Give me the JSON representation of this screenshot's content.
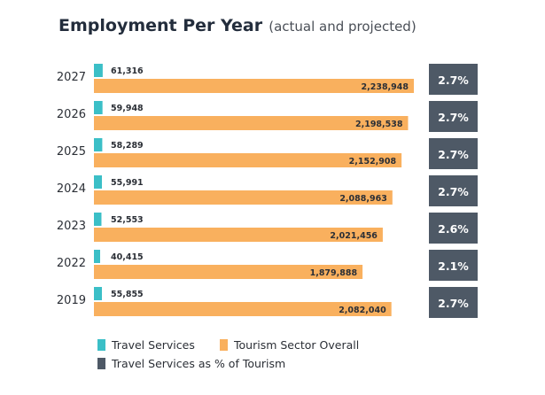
{
  "chart_data": {
    "type": "bar",
    "title": "Employment Per Year",
    "subtitle": "(actual and projected)",
    "categories": [
      "2027",
      "2026",
      "2025",
      "2024",
      "2023",
      "2022",
      "2019"
    ],
    "series": [
      {
        "name": "Travel Services",
        "color": "#3bbfc7",
        "values": [
          61316,
          59948,
          58289,
          55991,
          52553,
          40415,
          55855
        ],
        "labels": [
          "61,316",
          "59,948",
          "58,289",
          "55,991",
          "52,553",
          "40,415",
          "55,855"
        ]
      },
      {
        "name": "Tourism Sector Overall",
        "color": "#f9b05e",
        "values": [
          2238948,
          2198538,
          2152908,
          2088963,
          2021456,
          1879888,
          2082040
        ],
        "labels": [
          "2,238,948",
          "2,198,538",
          "2,152,908",
          "2,088,963",
          "2,021,456",
          "1,879,888",
          "2,082,040"
        ]
      },
      {
        "name": "Travel Services as % of Tourism",
        "color": "#4e5966",
        "values": [
          2.7,
          2.7,
          2.7,
          2.7,
          2.6,
          2.1,
          2.7
        ],
        "labels": [
          "2.7%",
          "2.7%",
          "2.7%",
          "2.7%",
          "2.6%",
          "2.1%",
          "2.7%"
        ]
      }
    ]
  }
}
